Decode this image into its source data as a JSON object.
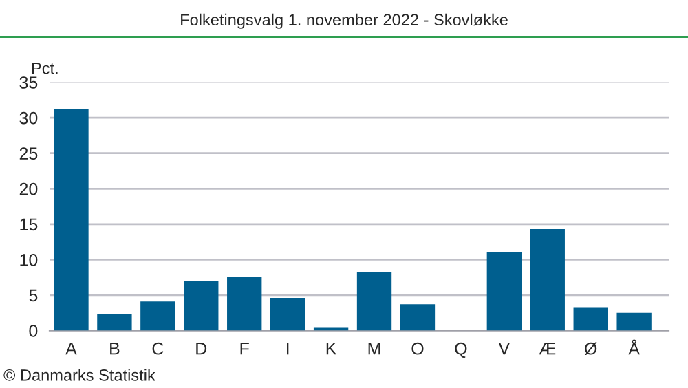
{
  "chart_data": {
    "type": "bar",
    "title": "Folketingsvalg 1. november 2022 - Skovløkke",
    "ylabel": "Pct.",
    "categories": [
      "A",
      "B",
      "C",
      "D",
      "F",
      "I",
      "K",
      "M",
      "O",
      "Q",
      "V",
      "Æ",
      "Ø",
      "Å"
    ],
    "values": [
      31.2,
      2.3,
      4.1,
      7.0,
      7.6,
      4.6,
      0.4,
      8.3,
      3.7,
      null,
      11.0,
      14.3,
      3.3,
      2.5
    ],
    "color": "#005f8f",
    "ylim": [
      0,
      35
    ],
    "yticks": [
      0,
      5,
      10,
      15,
      20,
      25,
      30,
      35
    ],
    "grid": "y",
    "annotations": [
      "© Danmarks Statistik"
    ]
  }
}
